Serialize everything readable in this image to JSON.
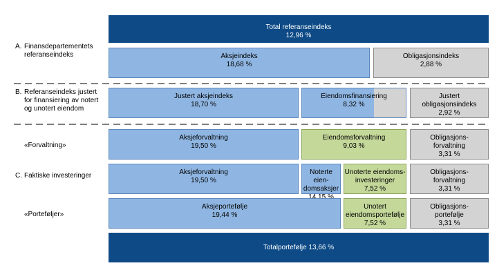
{
  "row_labels": [
    {
      "letter": "A.",
      "lines": [
        "Finansdepartementets",
        "referanseindeks"
      ]
    },
    {
      "letter": "B.",
      "lines": [
        "Referanseindeks justert",
        "for finansiering av notert",
        "og unotert eiendom"
      ]
    },
    {
      "lines": [
        "«Forvaltning»"
      ]
    },
    {
      "letter": "C.",
      "lines": [
        "Faktiske investeringer"
      ]
    },
    {
      "lines": [
        "«Porteføljer»"
      ]
    }
  ],
  "boxes": [
    {
      "lines": [
        "Total referanseindeks",
        "12,96 %"
      ]
    },
    {
      "lines": [
        "Aksjeindeks",
        "18,68 %"
      ]
    },
    {
      "lines": [
        "Obligasjonsindeks",
        "2,88 %"
      ]
    },
    {
      "lines": [
        "Justert aksjeindeks",
        "18,70 %"
      ]
    },
    {
      "lines": [
        "Eiendomsfinansiering",
        "8,32 %"
      ]
    },
    {
      "lines": [
        "Justert",
        "obligasjonsindeks",
        "2,92 %"
      ]
    },
    {
      "lines": [
        "Aksjeforvaltning",
        "19,50 %"
      ]
    },
    {
      "lines": [
        "Eiendomsforvaltning",
        "9,03 %"
      ]
    },
    {
      "lines": [
        "Obligasjons-",
        "forvaltning",
        "3,31 %"
      ]
    },
    {
      "lines": [
        "Aksjeforvaltning",
        "19,50 %"
      ]
    },
    {
      "lines": [
        "Noterte eien-",
        "domsaksjer",
        "14,15 %"
      ]
    },
    {
      "lines": [
        "Unoterte eiendoms-",
        "investeringer",
        "7,52 %"
      ]
    },
    {
      "lines": [
        "Obligasjons-",
        "forvaltning",
        "3,31 %"
      ]
    },
    {
      "lines": [
        "Aksjeportefølje",
        "19,44 %"
      ]
    },
    {
      "lines": [
        "Unotert",
        "eiendomsportefølje",
        "7,52 %"
      ]
    },
    {
      "lines": [
        "Obligasjons-",
        "portefølje",
        "3,31 %"
      ]
    },
    {
      "lines": [
        "Totalportefølje 13,66 %"
      ]
    }
  ]
}
